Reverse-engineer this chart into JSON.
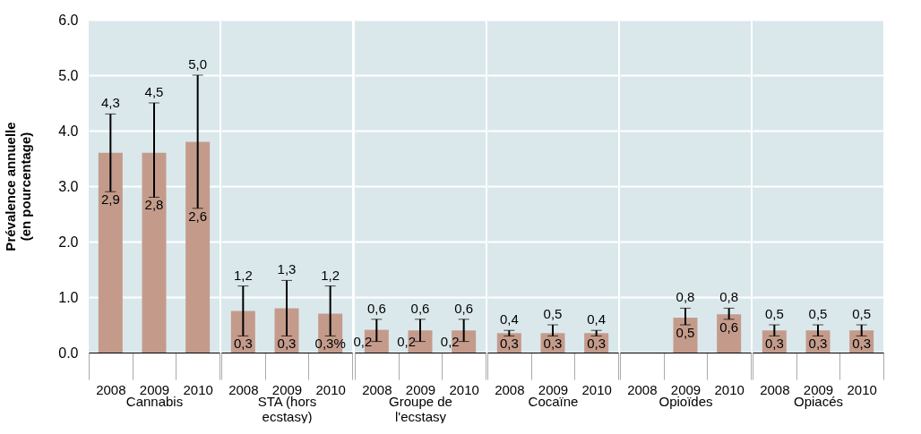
{
  "chart_data": [
    {
      "type": "bar",
      "categories": [
        "2008",
        "2009",
        "2010"
      ],
      "xlabel": "Cannabis",
      "ylabel": "Prévalence annuelle (en pourcentage)",
      "color": "#c49b8b",
      "values": [
        3.6,
        3.6,
        3.8
      ],
      "errors": [
        [
          2.9,
          4.3
        ],
        [
          2.8,
          4.5
        ],
        [
          2.6,
          5.0
        ]
      ],
      "ylim": [
        0,
        6
      ],
      "yticks": [
        {
          "value": 0,
          "label": "0.0"
        },
        {
          "value": 1,
          "label": "1.0"
        },
        {
          "value": 2,
          "label": "2.0"
        },
        {
          "value": 3,
          "label": "3.0"
        },
        {
          "value": 4,
          "label": "4.0"
        },
        {
          "value": 5,
          "label": "5.0"
        },
        {
          "value": 6,
          "label": "6.0"
        }
      ],
      "grid": "y",
      "annotations": [
        {
          "text": "4,3",
          "x": "2008",
          "y": 4.3
        },
        {
          "text": "2,9",
          "x": "2008",
          "y": 2.9
        },
        {
          "text": "4,5",
          "x": "2009",
          "y": 4.5
        },
        {
          "text": "2,8",
          "x": "2009",
          "y": 2.8
        },
        {
          "text": "5,0",
          "x": "2010",
          "y": 5.0
        },
        {
          "text": "2,6",
          "x": "2010",
          "y": 2.6
        }
      ]
    },
    {
      "type": "bar",
      "categories": [
        "2008",
        "2009",
        "2010"
      ],
      "xlabel": "STA (hors ecstasy)",
      "color": "#c49b8b",
      "values": [
        0.75,
        0.8,
        0.7
      ],
      "errors": [
        [
          0.3,
          1.2
        ],
        [
          0.3,
          1.3
        ],
        [
          0.3,
          1.2
        ]
      ],
      "ylim": [
        0,
        6
      ],
      "yticks": [
        0,
        1,
        2,
        3,
        4,
        5,
        6
      ],
      "grid": "y",
      "tick_labels": "x",
      "annotations": [
        {
          "text": "1,2",
          "x": "2008",
          "y": 1.2
        },
        {
          "text": "0,3",
          "x": "2008",
          "y": 0.3
        },
        {
          "text": "1,3",
          "x": "2009",
          "y": 1.3
        },
        {
          "text": "0,3",
          "x": "2009",
          "y": 0.3
        },
        {
          "text": "1,2",
          "x": "2010",
          "y": 1.2
        },
        {
          "text": "0,3%",
          "x": "2010",
          "y": 0.3
        }
      ]
    },
    {
      "type": "bar",
      "categories": [
        "2008",
        "2009",
        "2010"
      ],
      "xlabel": "Groupe de l'ecstasy",
      "color": "#c49b8b",
      "values": [
        0.41,
        0.4,
        0.4
      ],
      "errors": [
        [
          0.2,
          0.6
        ],
        [
          0.2,
          0.6
        ],
        [
          0.2,
          0.6
        ]
      ],
      "ylim": [
        0,
        6
      ],
      "yticks": [
        0,
        1,
        2,
        3,
        4,
        5,
        6
      ],
      "grid": "y",
      "tick_labels": "x",
      "annotations": [
        {
          "text": "0,6",
          "x": "2008",
          "y": 0.6
        },
        {
          "text": "0,2",
          "x": "2008",
          "y": 0.2
        },
        {
          "text": "0,6",
          "x": "2009",
          "y": 0.6
        },
        {
          "text": "0,2",
          "x": "2009",
          "y": 0.2
        },
        {
          "text": "0,6",
          "x": "2010",
          "y": 0.6
        },
        {
          "text": "0,2",
          "x": "2010",
          "y": 0.2
        }
      ]
    },
    {
      "type": "bar",
      "categories": [
        "2008",
        "2009",
        "2010"
      ],
      "xlabel": "Cocaïne",
      "color": "#c49b8b",
      "values": [
        0.35,
        0.35,
        0.35
      ],
      "errors": [
        [
          0.3,
          0.4
        ],
        [
          0.3,
          0.5
        ],
        [
          0.3,
          0.4
        ]
      ],
      "ylim": [
        0,
        6
      ],
      "yticks": [
        0,
        1,
        2,
        3,
        4,
        5,
        6
      ],
      "grid": "y",
      "tick_labels": "x",
      "annotations": [
        {
          "text": "0,4",
          "x": "2008",
          "y": 0.4
        },
        {
          "text": "0,3",
          "x": "2008",
          "y": 0.3
        },
        {
          "text": "0,5",
          "x": "2009",
          "y": 0.5
        },
        {
          "text": "0,3",
          "x": "2009",
          "y": 0.3
        },
        {
          "text": "0,4",
          "x": "2010",
          "y": 0.4
        },
        {
          "text": "0,3",
          "x": "2010",
          "y": 0.3
        }
      ]
    },
    {
      "type": "bar",
      "categories": [
        "2008",
        "2009",
        "2010"
      ],
      "xlabel": "Opioïdes",
      "color": "#c49b8b",
      "values": [
        null,
        0.63,
        0.69
      ],
      "errors": [
        null,
        [
          0.5,
          0.8
        ],
        [
          0.6,
          0.8
        ]
      ],
      "ylim": [
        0,
        6
      ],
      "yticks": [
        0,
        1,
        2,
        3,
        4,
        5,
        6
      ],
      "grid": "y",
      "tick_labels": "x",
      "annotations": [
        {
          "text": "0,8",
          "x": "2009",
          "y": 0.8
        },
        {
          "text": "0,5",
          "x": "2009",
          "y": 0.5
        },
        {
          "text": "0,8",
          "x": "2010",
          "y": 0.8
        },
        {
          "text": "0,6",
          "x": "2010",
          "y": 0.6
        }
      ]
    },
    {
      "type": "bar",
      "categories": [
        "2008",
        "2009",
        "2010"
      ],
      "xlabel": "Opiacés",
      "color": "#c49b8b",
      "values": [
        0.4,
        0.4,
        0.4
      ],
      "errors": [
        [
          0.3,
          0.5
        ],
        [
          0.3,
          0.5
        ],
        [
          0.3,
          0.5
        ]
      ],
      "ylim": [
        0,
        6
      ],
      "yticks": [
        0,
        1,
        2,
        3,
        4,
        5,
        6
      ],
      "grid": "y",
      "tick_labels": "x",
      "annotations": [
        {
          "text": "0,5",
          "x": "2008",
          "y": 0.5
        },
        {
          "text": "0,3",
          "x": "2008",
          "y": 0.3
        },
        {
          "text": "0,5",
          "x": "2009",
          "y": 0.5
        },
        {
          "text": "0,3",
          "x": "2009",
          "y": 0.3
        },
        {
          "text": "0,5",
          "x": "2010",
          "y": 0.5
        },
        {
          "text": "0,3",
          "x": "2010",
          "y": 0.3
        }
      ]
    }
  ]
}
